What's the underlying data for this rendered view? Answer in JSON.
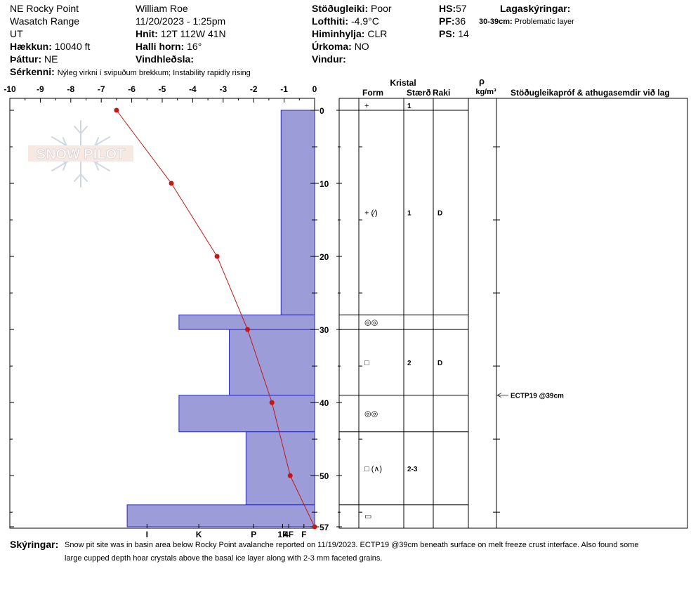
{
  "header": {
    "location": "NE Rocky Point",
    "range": "Wasatch Range",
    "state": "UT",
    "elevation_label": "Hækkun:",
    "elevation_value": "10040 ft",
    "aspect_label": "Þáttur:",
    "aspect_value": "NE",
    "features_label": "Sérkenni:",
    "features_value": "Nýleg virkni í svipuðum brekkum; Instability rapidly rising",
    "observer": "William  Roe",
    "datetime": "11/20/2023 - 1:25pm",
    "coords_label": "Hnit:",
    "coords_value": "12T 112W 41N",
    "slope_label": "Halli horn:",
    "slope_value": "16°",
    "wind_loading_label": "Vindhleðsla:",
    "wind_loading_value": "",
    "stability_label": "Stöðugleiki:",
    "stability_value": "Poor",
    "air_temp_label": "Lofthiti:",
    "air_temp_value": "-4.9°C",
    "sky_label": "Himinhylja:",
    "sky_value": "CLR",
    "precip_label": "Úrkoma:",
    "precip_value": "NO",
    "wind_label": "Vindur:",
    "wind_value": "",
    "hs_label": "HS:",
    "hs_value": "57",
    "pf_label": "PF:",
    "pf_value": "36",
    "ps_label": "PS:",
    "ps_value": "14",
    "legend_title": "Lagaskýringar:",
    "legend_range": "30-39cm:",
    "legend_text": "Problematic layer"
  },
  "table_headers": {
    "crystal": "Kristal",
    "form": "Form",
    "size": "Stærð",
    "moisture": "Raki",
    "rho": "ρ",
    "density_unit": "kg/m³",
    "tests": "Stöðugleikapróf & athugasemdir við lag"
  },
  "comments": {
    "label": "Skýringar:",
    "line1": "Snow pit site was in basin area below Rocky Point avalanche reported on 11/19/2023. ECTP19 @39cm beneath surface on melt freeze crust interface. Also found some",
    "line2": "large cupped depth hoar crystals above the basal ice layer along with 2-3 mm faceted grains."
  },
  "watermark": "SNOW PILOT",
  "colors": {
    "hardness_fill": "#9c9cd8",
    "hardness_stroke": "#2a2ab8",
    "temp_line": "#c01818",
    "temp_point": "#c01818"
  },
  "chart_data": {
    "type": "snow_profile",
    "temperature_axis": {
      "label_units": "°C",
      "ticks": [
        "-10",
        "-9",
        "-8",
        "-7",
        "-6",
        "-5",
        "-4",
        "-3",
        "-2",
        "-1",
        "0"
      ],
      "range": [
        -10,
        0
      ]
    },
    "depth_axis": {
      "ticks": [
        "0",
        "10",
        "20",
        "30",
        "40",
        "50",
        "57"
      ],
      "range": [
        0,
        57
      ]
    },
    "hardness_axis": {
      "ticks": [
        "I",
        "K",
        "P",
        "1F",
        "4F",
        "F"
      ],
      "scale_values": [
        5.5,
        3.8,
        2.0,
        1.05,
        0.85,
        0.35
      ]
    },
    "hardness_layers": [
      {
        "top": 0,
        "bottom": 28,
        "value": 1.1
      },
      {
        "top": 28,
        "bottom": 30,
        "value": 4.45
      },
      {
        "top": 30,
        "bottom": 39,
        "value": 2.8
      },
      {
        "top": 39,
        "bottom": 44,
        "value": 4.45
      },
      {
        "top": 44,
        "bottom": 54,
        "value": 2.25
      },
      {
        "top": 54,
        "bottom": 57,
        "value": 6.15
      }
    ],
    "temperature_profile": [
      {
        "depth": 0,
        "temp": -6.5
      },
      {
        "depth": 10,
        "temp": -4.7
      },
      {
        "depth": 20,
        "temp": -3.2
      },
      {
        "depth": 30,
        "temp": -2.2
      },
      {
        "depth": 40,
        "temp": -1.4
      },
      {
        "depth": 50,
        "temp": -0.8
      },
      {
        "depth": 57,
        "temp": 0
      }
    ],
    "layers": [
      {
        "top": 0,
        "bottom": 0,
        "form": "+",
        "size": "1",
        "moisture": ""
      },
      {
        "top": 0,
        "bottom": 28,
        "form": "+ (⁄)",
        "size": "1",
        "moisture": "D"
      },
      {
        "top": 28,
        "bottom": 30,
        "form": "◎◎",
        "size": "",
        "moisture": ""
      },
      {
        "top": 30,
        "bottom": 39,
        "form": "□",
        "size": "2",
        "moisture": "D"
      },
      {
        "top": 39,
        "bottom": 44,
        "form": "◎◎",
        "size": "",
        "moisture": ""
      },
      {
        "top": 44,
        "bottom": 54,
        "form": "□ (∧)",
        "size": "2-3",
        "moisture": ""
      },
      {
        "top": 54,
        "bottom": 57,
        "form": "▭",
        "size": "",
        "moisture": ""
      }
    ],
    "stability_tests": [
      {
        "depth": 39,
        "label": "ECTP19 @39cm"
      }
    ]
  }
}
